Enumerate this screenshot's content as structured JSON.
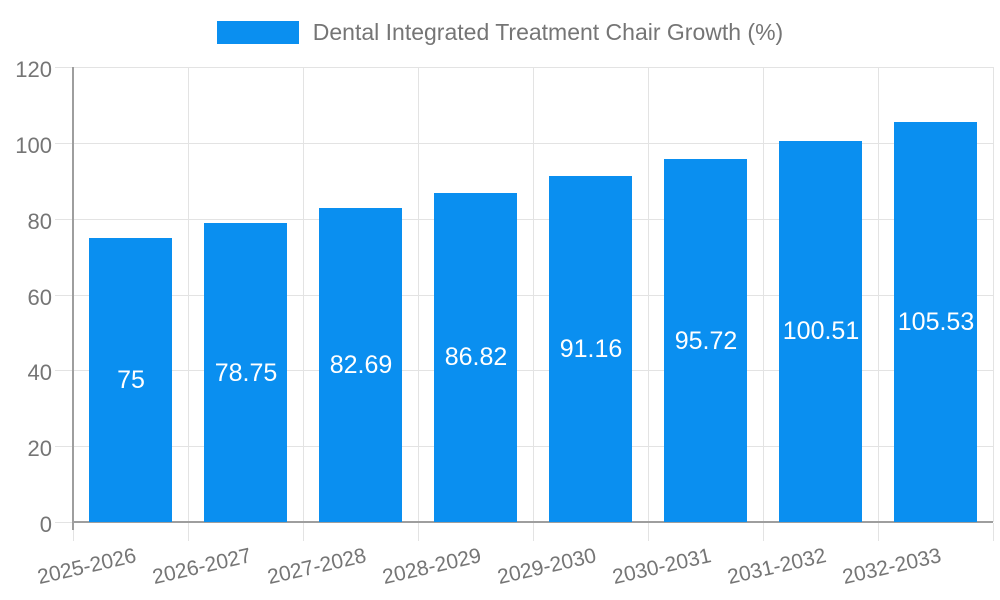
{
  "legend": {
    "label": "Dental Integrated Treatment Chair Growth (%)"
  },
  "colors": {
    "background": "#ffffff",
    "bar": "#0a8ff0",
    "grid": "#e3e3e3",
    "axis": "#9e9e9e",
    "label": "#757575",
    "bar_label": "#ffffff"
  },
  "chart_data": {
    "type": "bar",
    "title": "Dental Integrated Treatment Chair Growth (%)",
    "categories": [
      "2025-2026",
      "2026-2027",
      "2027-2028",
      "2028-2029",
      "2029-2030",
      "2030-2031",
      "2031-2032",
      "2032-2033"
    ],
    "values": [
      75,
      78.75,
      82.69,
      86.82,
      91.16,
      95.72,
      100.51,
      105.53
    ],
    "value_labels": [
      "75",
      "78.75",
      "82.69",
      "86.82",
      "91.16",
      "95.72",
      "100.51",
      "105.53"
    ],
    "xlabel": "",
    "ylabel": "",
    "ylim": [
      0,
      120
    ],
    "yticks": [
      0,
      20,
      40,
      60,
      80,
      100,
      120
    ],
    "grid": true,
    "legend_position": "top",
    "bar_label_position": "center",
    "x_label_rotation_deg": -13
  }
}
